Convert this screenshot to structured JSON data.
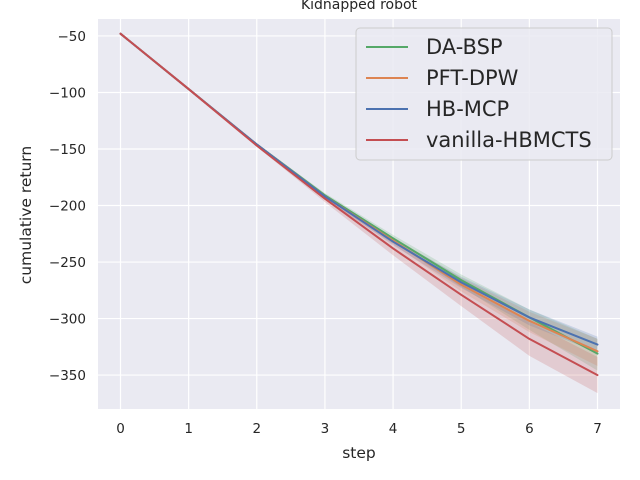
{
  "chart_data": {
    "type": "line",
    "title": "Kidnapped robot",
    "xlabel": "step",
    "ylabel": "cumulative return",
    "x": [
      0,
      1,
      2,
      3,
      4,
      5,
      6,
      7
    ],
    "xlim": [
      -0.33,
      7.33
    ],
    "ylim": [
      -380,
      -35
    ],
    "xticks": [
      0,
      1,
      2,
      3,
      4,
      5,
      6,
      7
    ],
    "yticks": [
      -50,
      -100,
      -150,
      -200,
      -250,
      -300,
      -350
    ],
    "grid": true,
    "legend_position": "top-right",
    "series": [
      {
        "name": "DA-BSP",
        "color": "#55a868",
        "values": [
          -48,
          -97,
          -146,
          -191,
          -229,
          -266,
          -299,
          -331
        ],
        "lower": [
          -48,
          -97,
          -147,
          -193,
          -232,
          -272,
          -310,
          -346
        ],
        "upper": [
          -48,
          -97,
          -145,
          -189,
          -226,
          -261,
          -292,
          -318
        ]
      },
      {
        "name": "PFT-DPW",
        "color": "#dd8452",
        "values": [
          -48,
          -97,
          -146,
          -192,
          -231,
          -270,
          -302,
          -329
        ],
        "lower": [
          -48,
          -97,
          -147,
          -194,
          -234,
          -276,
          -312,
          -342
        ],
        "upper": [
          -48,
          -97,
          -145,
          -190,
          -228,
          -264,
          -294,
          -318
        ]
      },
      {
        "name": "HB-MCP",
        "color": "#4c72b0",
        "values": [
          -48,
          -97,
          -146,
          -192,
          -232,
          -268,
          -299,
          -323
        ],
        "lower": [
          -48,
          -97,
          -147,
          -194,
          -235,
          -273,
          -306,
          -330
        ],
        "upper": [
          -48,
          -97,
          -145,
          -190,
          -229,
          -263,
          -292,
          -316
        ]
      },
      {
        "name": "vanilla-HBMCTS",
        "color": "#c44e52",
        "values": [
          -48,
          -97,
          -147,
          -194,
          -238,
          -279,
          -318,
          -350
        ],
        "lower": [
          -48,
          -97,
          -148,
          -197,
          -244,
          -289,
          -333,
          -366
        ],
        "upper": [
          -48,
          -97,
          -146,
          -191,
          -232,
          -269,
          -303,
          -334
        ]
      }
    ]
  },
  "colors": {
    "plot_background": "#eaeaf2",
    "grid": "#ffffff",
    "text": "#262626"
  }
}
